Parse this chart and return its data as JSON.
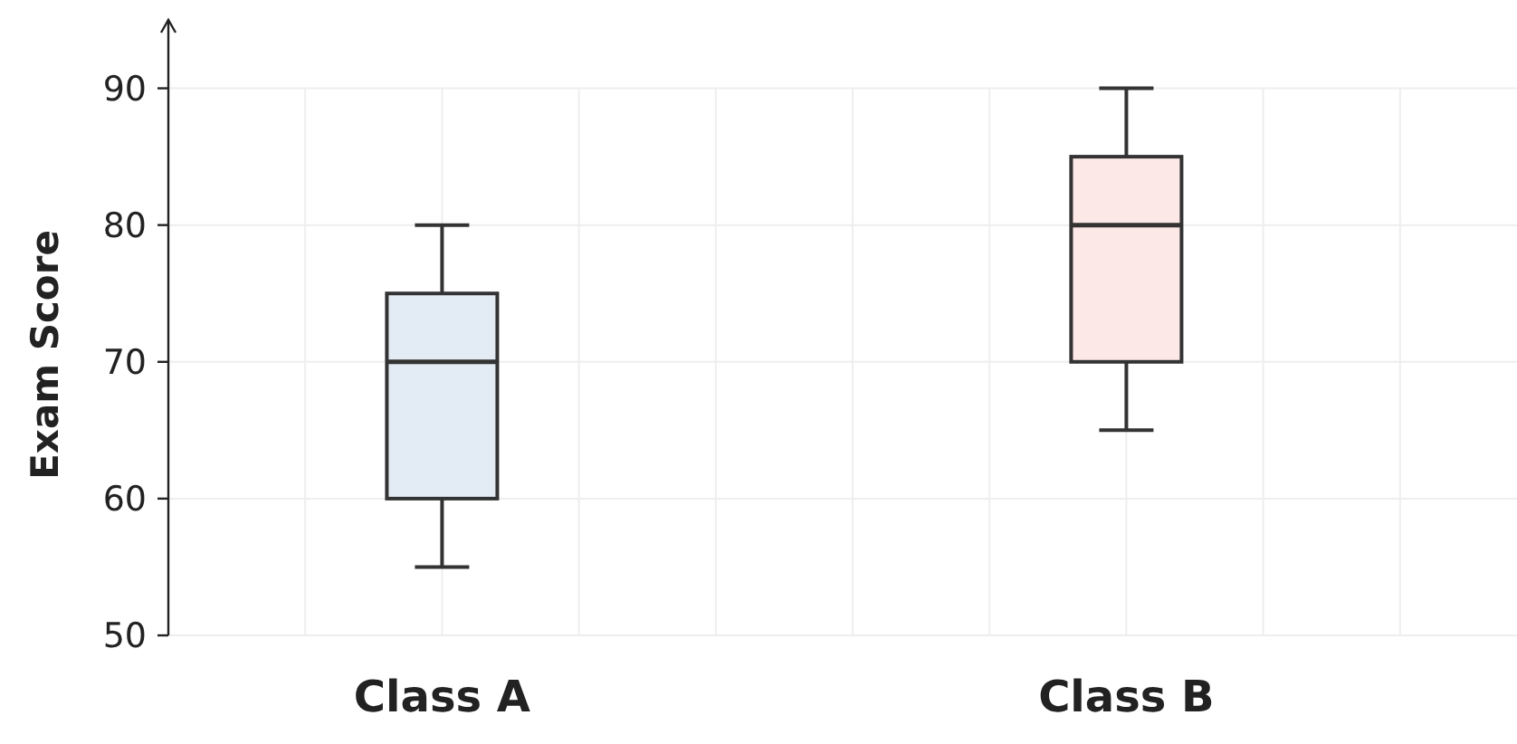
{
  "chart_data": {
    "type": "box",
    "ylabel": "Exam Score",
    "categories": [
      "Class A",
      "Class B"
    ],
    "boxes": [
      {
        "low": 55,
        "q1": 60,
        "median": 70,
        "q3": 75,
        "high": 80
      },
      {
        "low": 65,
        "q1": 70,
        "median": 80,
        "q3": 85,
        "high": 90
      }
    ],
    "colors": [
      "#e3ebf4",
      "#fce8e6"
    ],
    "ylim": [
      50,
      95
    ],
    "yticks": [
      50,
      60,
      70,
      80,
      90
    ],
    "grid": true
  }
}
